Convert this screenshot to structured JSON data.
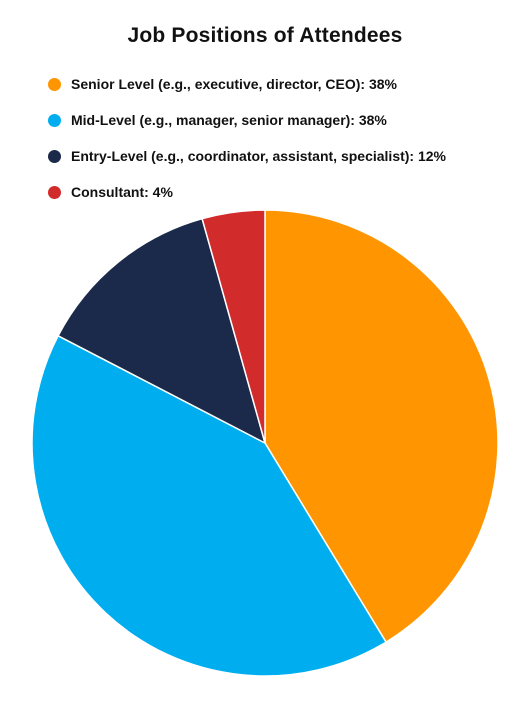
{
  "chart_data": {
    "type": "pie",
    "title": "Job Positions of Attendees",
    "slices": [
      {
        "label": "Senior Level (e.g., executive, director, CEO): 38%",
        "value": 38,
        "color": "#FF9500"
      },
      {
        "label": "Mid-Level (e.g., manager, senior manager): 38%",
        "value": 38,
        "color": "#00AEEF"
      },
      {
        "label": "Entry-Level (e.g., coordinator, assistant, specialist): 12%",
        "value": 12,
        "color": "#1B2A4A"
      },
      {
        "label": "Consultant: 4%",
        "value": 4,
        "color": "#D12B2B"
      }
    ],
    "legend_position": "top-left",
    "start_angle": "top",
    "direction": "clockwise"
  }
}
